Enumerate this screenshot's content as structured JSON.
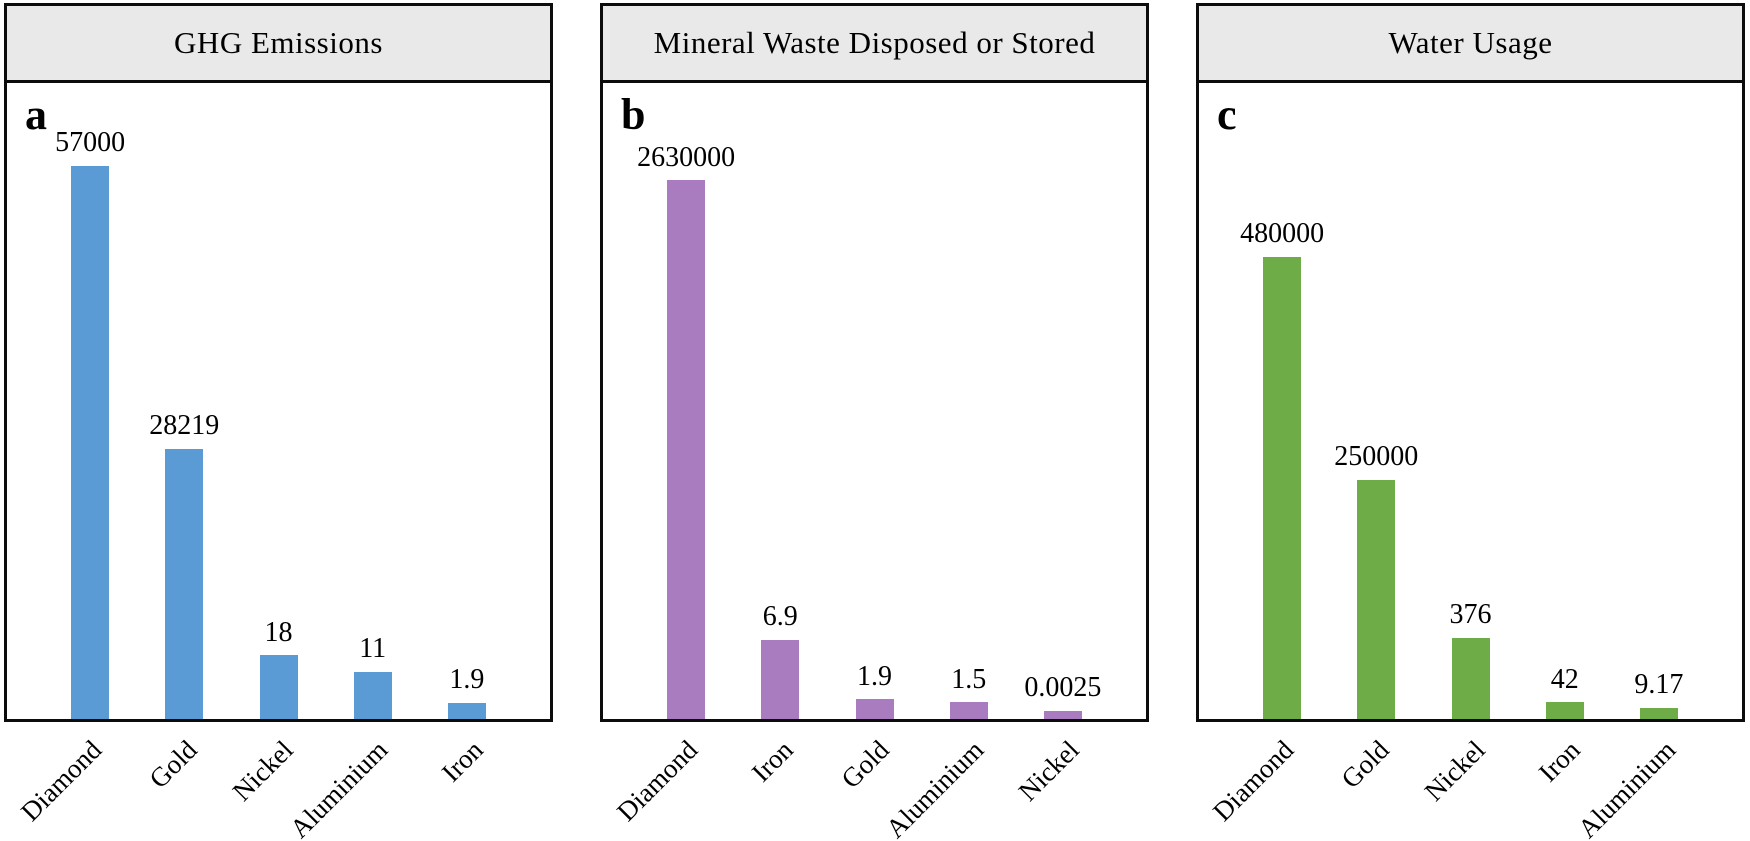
{
  "figure_background": "#ffffff",
  "panel_border_color": "#0c0c0c",
  "panel_title_background": "#e9e9e9",
  "chart_data": [
    {
      "type": "bar",
      "panel_letter": "a",
      "title": "GHG Emissions",
      "categories": [
        "Diamond",
        "Gold",
        "Nickel",
        "Aluminium",
        "Iron"
      ],
      "values": [
        57000,
        28219,
        18,
        11,
        1.9
      ],
      "value_labels": [
        "57000",
        "28219",
        "18",
        "11",
        "1.9"
      ],
      "bar_color": "#5b9bd5",
      "bar_height_pct": [
        87,
        42.5,
        10,
        7.4,
        2.5
      ],
      "xlabel": "",
      "ylabel": "",
      "axis_ticks": "none",
      "grid": "off",
      "legend": "none",
      "scale_note": "illustrative non-linear bar heights; values shown as data labels above bars"
    },
    {
      "type": "bar",
      "panel_letter": "b",
      "title": "Mineral Waste Disposed or Stored",
      "categories": [
        "Diamond",
        "Iron",
        "Gold",
        "Aluminium",
        "Nickel"
      ],
      "values": [
        2630000,
        6.9,
        1.9,
        1.5,
        0.0025
      ],
      "value_labels": [
        "2630000",
        "6.9",
        "1.9",
        "1.5",
        "0.0025"
      ],
      "bar_color": "#a87cbe",
      "bar_height_pct": [
        84.7,
        12.4,
        3.1,
        2.6,
        1.3
      ],
      "xlabel": "",
      "ylabel": "",
      "axis_ticks": "none",
      "grid": "off",
      "legend": "none",
      "scale_note": "illustrative non-linear bar heights; values shown as data labels above bars"
    },
    {
      "type": "bar",
      "panel_letter": "c",
      "title": "Water Usage",
      "categories": [
        "Diamond",
        "Gold",
        "Nickel",
        "Iron",
        "Aluminium"
      ],
      "values": [
        480000,
        250000,
        376,
        42,
        9.17
      ],
      "value_labels": [
        "480000",
        "250000",
        "376",
        "42",
        "9.17"
      ],
      "bar_color": "#6eac48",
      "bar_height_pct": [
        72.6,
        37.6,
        12.7,
        2.6,
        1.8
      ],
      "xlabel": "",
      "ylabel": "",
      "axis_ticks": "none",
      "grid": "off",
      "legend": "none",
      "scale_note": "illustrative non-linear bar heights; values shown as data labels above bars"
    }
  ]
}
